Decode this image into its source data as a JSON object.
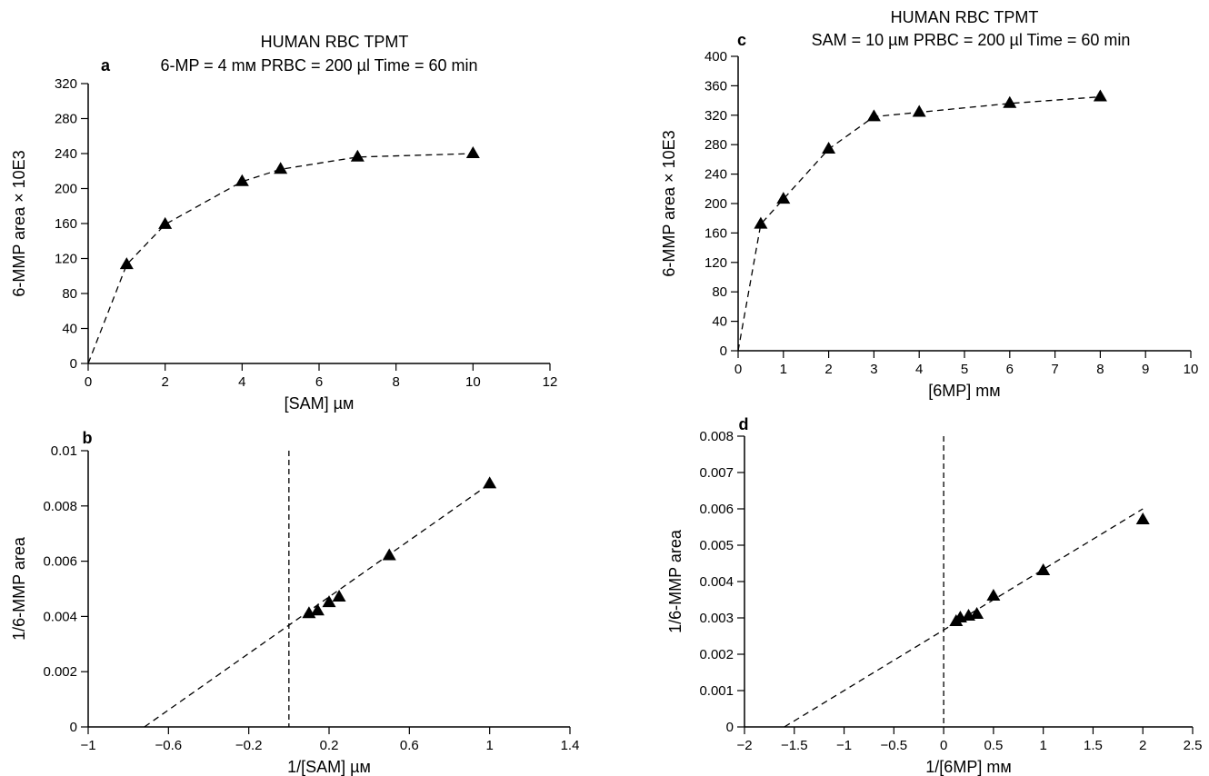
{
  "chart_data": [
    {
      "id": "a",
      "panel_label": "a",
      "type": "line",
      "title": "HUMAN RBC TPMT",
      "subtitle": "6-MP = 4 mм  PRBC = 200 µl  Time = 60 min",
      "xlabel": "[SAM] µм",
      "ylabel": "6-MMP area × 10E3",
      "xlim": [
        0,
        12
      ],
      "ylim": [
        0,
        320
      ],
      "xticks": [
        0,
        2,
        4,
        6,
        8,
        10,
        12
      ],
      "yticks": [
        0,
        40,
        80,
        120,
        160,
        200,
        240,
        280,
        320
      ],
      "series": [
        {
          "x": [
            1,
            2,
            4,
            5,
            7,
            10
          ],
          "y": [
            113,
            159,
            208,
            222,
            236,
            240
          ]
        }
      ],
      "fit_line": {
        "x": [
          0,
          1,
          2,
          4,
          5,
          7,
          10
        ],
        "y": [
          0,
          113,
          159,
          208,
          222,
          236,
          240
        ]
      }
    },
    {
      "id": "b",
      "panel_label": "b",
      "type": "scatter",
      "title": "",
      "xlabel": "1/[SAM] µм",
      "ylabel": "1/6-MMP area",
      "xlim": [
        -1,
        1.4
      ],
      "ylim": [
        0,
        0.01
      ],
      "xticks": [
        -1,
        -0.6,
        -0.2,
        0.2,
        0.6,
        1,
        1.4
      ],
      "yticks": [
        0,
        0.002,
        0.004,
        0.006,
        0.008,
        0.01
      ],
      "series": [
        {
          "x": [
            0.1,
            0.143,
            0.2,
            0.25,
            0.5,
            1.0
          ],
          "y": [
            0.0041,
            0.0042,
            0.0045,
            0.0047,
            0.0062,
            0.0088
          ]
        }
      ],
      "fit_line": {
        "x": [
          -0.72,
          1.0
        ],
        "y": [
          0,
          0.0088
        ]
      },
      "vline_x": 0
    },
    {
      "id": "c",
      "panel_label": "c",
      "type": "line",
      "title": "HUMAN RBC TPMT",
      "subtitle": "SAM = 10 µм  PRBC = 200 µl  Time = 60 min",
      "xlabel": "[6MP] mм",
      "ylabel": "6-MMP area × 10E3",
      "xlim": [
        0,
        10
      ],
      "ylim": [
        0,
        400
      ],
      "xticks": [
        0,
        1,
        2,
        3,
        4,
        5,
        6,
        7,
        8,
        9,
        10
      ],
      "yticks": [
        0,
        40,
        80,
        120,
        160,
        200,
        240,
        280,
        320,
        360,
        400
      ],
      "series": [
        {
          "x": [
            0.5,
            1,
            2,
            3,
            4,
            6,
            8
          ],
          "y": [
            172,
            206,
            274,
            318,
            324,
            336,
            345
          ]
        }
      ],
      "fit_line": {
        "x": [
          0,
          0.5,
          1,
          2,
          3,
          4,
          6,
          8
        ],
        "y": [
          0,
          172,
          206,
          274,
          318,
          324,
          336,
          345
        ]
      }
    },
    {
      "id": "d",
      "panel_label": "d",
      "type": "scatter",
      "title": "",
      "xlabel": "1/[6MP] mм",
      "ylabel": "1/6-MMP area",
      "xlim": [
        -2,
        2.5
      ],
      "ylim": [
        0,
        0.008
      ],
      "xticks": [
        -2,
        -1.5,
        -1,
        -0.5,
        0,
        0.5,
        1,
        1.5,
        2,
        2.5
      ],
      "xtick_labels": [
        "−2",
        "−1.5",
        "−1",
        "−0.5",
        "0",
        "0.5",
        "1",
        "1.5",
        "2",
        "2.5"
      ],
      "yticks": [
        0,
        0.001,
        0.002,
        0.003,
        0.004,
        0.005,
        0.006,
        0.007,
        0.008
      ],
      "series": [
        {
          "x": [
            0.125,
            0.167,
            0.25,
            0.333,
            0.5,
            1.0,
            2.0
          ],
          "y": [
            0.0029,
            0.003,
            0.00305,
            0.0031,
            0.0036,
            0.0043,
            0.0057
          ]
        }
      ],
      "fit_line": {
        "x": [
          -1.6,
          2.0
        ],
        "y": [
          0,
          0.006
        ]
      },
      "vline_x": 0
    }
  ]
}
